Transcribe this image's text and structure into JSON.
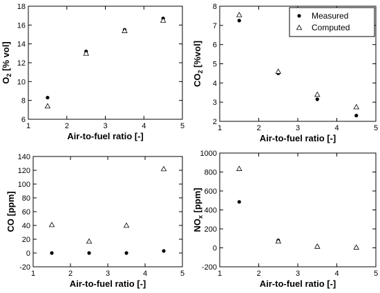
{
  "chart_data": [
    {
      "type": "scatter",
      "xlabel": "Air-to-fuel ratio [-]",
      "ylabel": "O2 [% vol]",
      "ylabel_sub": "2",
      "xlim": [
        1,
        5
      ],
      "ylim": [
        6,
        18
      ],
      "xticks": [
        1,
        2,
        3,
        4,
        5
      ],
      "yticks": [
        6,
        8,
        10,
        12,
        14,
        16,
        18
      ],
      "series": [
        {
          "name": "Measured",
          "marker": "circle",
          "x": [
            1.5,
            2.5,
            3.5,
            4.5
          ],
          "y": [
            8.3,
            13.2,
            15.5,
            16.7
          ]
        },
        {
          "name": "Computed",
          "marker": "triangle",
          "x": [
            1.5,
            2.5,
            3.5,
            4.5
          ],
          "y": [
            7.4,
            13.0,
            15.4,
            16.5
          ]
        }
      ]
    },
    {
      "type": "scatter",
      "xlabel": "Air-to-fuel ratio [-]",
      "ylabel": "CO2 [%vol]",
      "ylabel_sub": "2",
      "xlim": [
        1,
        5
      ],
      "ylim": [
        2,
        8
      ],
      "xticks": [
        1,
        2,
        3,
        4,
        5
      ],
      "yticks": [
        2,
        3,
        4,
        5,
        6,
        7,
        8
      ],
      "legend": {
        "position": "top-right",
        "entries": [
          "Measured",
          "Computed"
        ]
      },
      "series": [
        {
          "name": "Measured",
          "marker": "circle",
          "x": [
            1.5,
            2.5,
            3.5,
            4.5
          ],
          "y": [
            7.25,
            4.5,
            3.15,
            2.3
          ]
        },
        {
          "name": "Computed",
          "marker": "triangle",
          "x": [
            1.5,
            2.5,
            3.5,
            4.5
          ],
          "y": [
            7.55,
            4.6,
            3.4,
            2.75
          ]
        }
      ]
    },
    {
      "type": "scatter",
      "xlabel": "Air-to-fuel ratio [-]",
      "ylabel": "CO [ppm]",
      "xlim": [
        1,
        5
      ],
      "ylim": [
        -20,
        140
      ],
      "xticks": [
        1,
        2,
        3,
        4,
        5
      ],
      "yticks": [
        -20,
        0,
        20,
        40,
        60,
        80,
        100,
        120,
        140
      ],
      "series": [
        {
          "name": "Measured",
          "marker": "circle",
          "x": [
            1.5,
            2.5,
            3.5,
            4.5
          ],
          "y": [
            0,
            0,
            0,
            3
          ]
        },
        {
          "name": "Computed",
          "marker": "triangle",
          "x": [
            1.5,
            2.5,
            3.5,
            4.5
          ],
          "y": [
            41,
            17,
            40,
            122
          ]
        }
      ]
    },
    {
      "type": "scatter",
      "xlabel": "Air-to-fuel ratio [-]",
      "ylabel": "NOx [ppm]",
      "ylabel_sub": "x",
      "xlim": [
        1,
        5
      ],
      "ylim": [
        -200,
        1000
      ],
      "xticks": [
        1,
        2,
        3,
        4,
        5
      ],
      "yticks": [
        -200,
        0,
        200,
        400,
        600,
        800,
        1000
      ],
      "series": [
        {
          "name": "Measured",
          "marker": "circle",
          "x": [
            1.5,
            2.5,
            3.5,
            4.5
          ],
          "y": [
            485,
            78,
            12,
            2
          ]
        },
        {
          "name": "Computed",
          "marker": "triangle",
          "x": [
            1.5,
            2.5,
            3.5,
            4.5
          ],
          "y": [
            835,
            70,
            15,
            5
          ]
        }
      ]
    }
  ]
}
